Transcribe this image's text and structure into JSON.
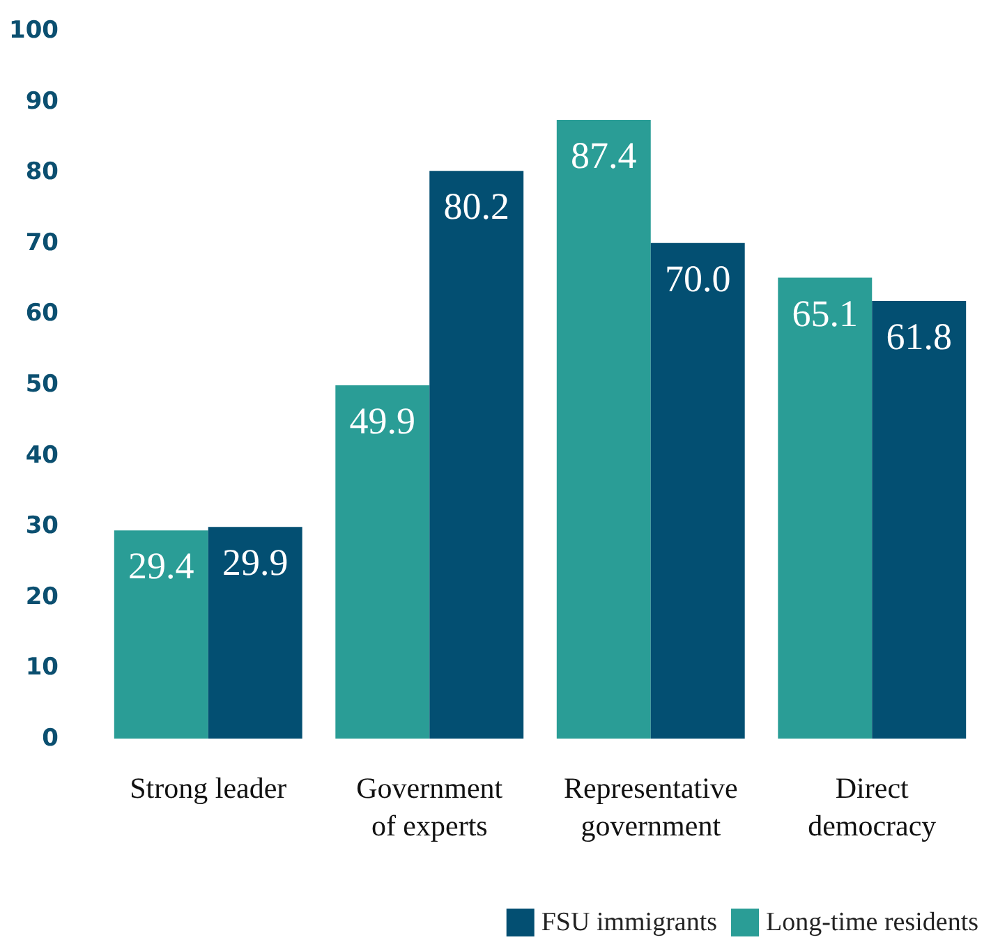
{
  "chart_data": {
    "type": "bar",
    "categories": [
      "Strong leader",
      "Government\nof experts",
      "Representative\ngovernment",
      "Direct\ndemocracy"
    ],
    "series": [
      {
        "name": "Long-time residents",
        "color": "#2a9d96",
        "values": [
          29.4,
          49.9,
          87.4,
          65.1
        ],
        "value_labels": [
          "29.4",
          "49.9",
          "87.4",
          "65.1"
        ]
      },
      {
        "name": "FSU immigrants",
        "color": "#034f72",
        "values": [
          29.9,
          80.2,
          70.0,
          61.8
        ],
        "value_labels": [
          "29.9",
          "80.2",
          "70.0",
          "61.8"
        ]
      }
    ],
    "ylim": [
      0,
      100
    ],
    "yticks": [
      0,
      10,
      20,
      30,
      40,
      50,
      60,
      70,
      80,
      90,
      100
    ],
    "grid": false,
    "legend": "bottom right"
  }
}
